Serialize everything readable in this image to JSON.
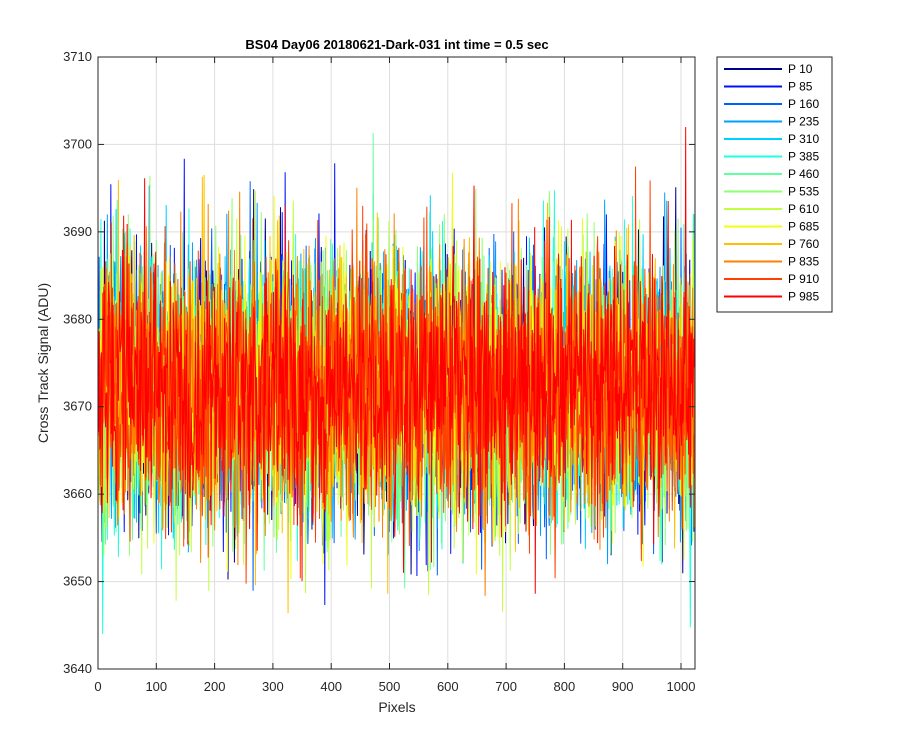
{
  "chart_data": {
    "type": "line",
    "title": "BS04 Day06 20180621-Dark-031 int time = 0.5 sec",
    "xlabel": "Pixels",
    "ylabel": "Cross Track Signal (ADU)",
    "xlim": [
      0,
      1024
    ],
    "ylim": [
      3640,
      3710
    ],
    "xticks": [
      "0",
      "100",
      "200",
      "300",
      "400",
      "500",
      "600",
      "700",
      "800",
      "900",
      "1000"
    ],
    "xtick_values": [
      0,
      100,
      200,
      300,
      400,
      500,
      600,
      700,
      800,
      900,
      1000
    ],
    "yticks": [
      "3640",
      "3650",
      "3660",
      "3670",
      "3680",
      "3690",
      "3700",
      "3710"
    ],
    "ytick_values": [
      3640,
      3650,
      3660,
      3670,
      3680,
      3690,
      3700,
      3710
    ],
    "grid": true,
    "legend_position": "outside-right",
    "noise": {
      "mean": 3672,
      "stddev": 7.5,
      "n_points": 1024
    },
    "series": [
      {
        "name": "P 10",
        "color": "#00008f"
      },
      {
        "name": "P 85",
        "color": "#0010ff"
      },
      {
        "name": "P 160",
        "color": "#0060ff"
      },
      {
        "name": "P 235",
        "color": "#00a0ff"
      },
      {
        "name": "P 310",
        "color": "#00d0ff"
      },
      {
        "name": "P 385",
        "color": "#20ffdf"
      },
      {
        "name": "P 460",
        "color": "#60ffa0"
      },
      {
        "name": "P 535",
        "color": "#90ff70"
      },
      {
        "name": "P 610",
        "color": "#c0ff40"
      },
      {
        "name": "P 685",
        "color": "#f0ff10"
      },
      {
        "name": "P 760",
        "color": "#ffc000"
      },
      {
        "name": "P 835",
        "color": "#ff8000"
      },
      {
        "name": "P 910",
        "color": "#ff4000"
      },
      {
        "name": "P 985",
        "color": "#ff0000"
      }
    ]
  }
}
